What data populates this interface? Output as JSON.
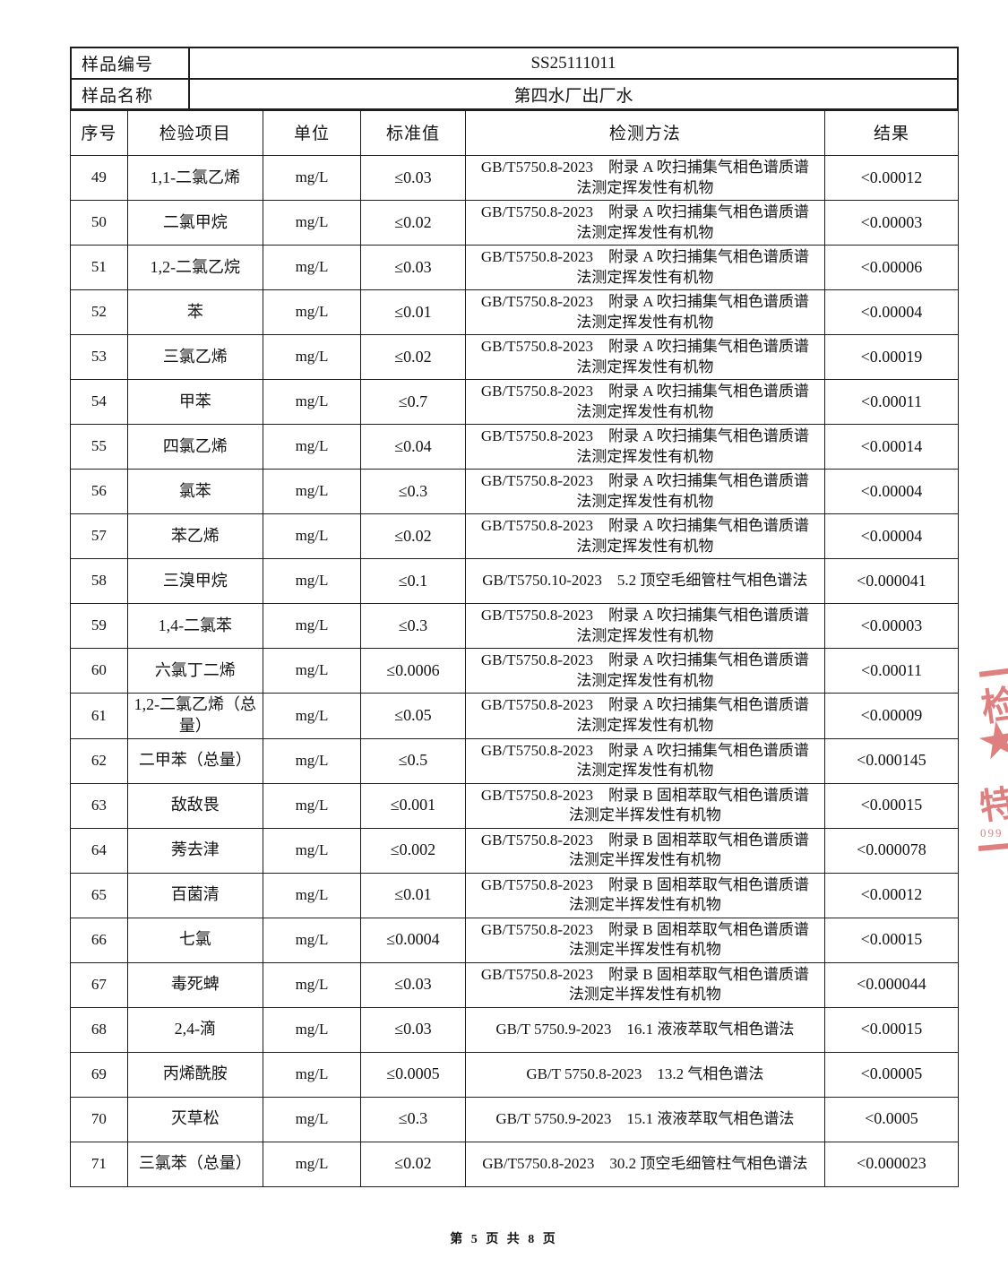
{
  "header": {
    "sample_id_label": "样品编号",
    "sample_id_value": "SS25111011",
    "sample_name_label": "样品名称",
    "sample_name_value": "第四水厂出厂水"
  },
  "table": {
    "columns": [
      "序号",
      "检验项目",
      "单位",
      "标准值",
      "检测方法",
      "结果"
    ],
    "rows": [
      {
        "no": "49",
        "item": "1,1-二氯乙烯",
        "unit": "mg/L",
        "standard": "≤0.03",
        "method": "GB/T5750.8-2023　附录 A 吹扫捕集气相色谱质谱法测定挥发性有机物",
        "result": "<0.00012"
      },
      {
        "no": "50",
        "item": "二氯甲烷",
        "unit": "mg/L",
        "standard": "≤0.02",
        "method": "GB/T5750.8-2023　附录 A 吹扫捕集气相色谱质谱法测定挥发性有机物",
        "result": "<0.00003"
      },
      {
        "no": "51",
        "item": "1,2-二氯乙烷",
        "unit": "mg/L",
        "standard": "≤0.03",
        "method": "GB/T5750.8-2023　附录 A 吹扫捕集气相色谱质谱法测定挥发性有机物",
        "result": "<0.00006"
      },
      {
        "no": "52",
        "item": "苯",
        "unit": "mg/L",
        "standard": "≤0.01",
        "method": "GB/T5750.8-2023　附录 A 吹扫捕集气相色谱质谱法测定挥发性有机物",
        "result": "<0.00004"
      },
      {
        "no": "53",
        "item": "三氯乙烯",
        "unit": "mg/L",
        "standard": "≤0.02",
        "method": "GB/T5750.8-2023　附录 A 吹扫捕集气相色谱质谱法测定挥发性有机物",
        "result": "<0.00019"
      },
      {
        "no": "54",
        "item": "甲苯",
        "unit": "mg/L",
        "standard": "≤0.7",
        "method": "GB/T5750.8-2023　附录 A 吹扫捕集气相色谱质谱法测定挥发性有机物",
        "result": "<0.00011"
      },
      {
        "no": "55",
        "item": "四氯乙烯",
        "unit": "mg/L",
        "standard": "≤0.04",
        "method": "GB/T5750.8-2023　附录 A 吹扫捕集气相色谱质谱法测定挥发性有机物",
        "result": "<0.00014"
      },
      {
        "no": "56",
        "item": "氯苯",
        "unit": "mg/L",
        "standard": "≤0.3",
        "method": "GB/T5750.8-2023　附录 A 吹扫捕集气相色谱质谱法测定挥发性有机物",
        "result": "<0.00004"
      },
      {
        "no": "57",
        "item": "苯乙烯",
        "unit": "mg/L",
        "standard": "≤0.02",
        "method": "GB/T5750.8-2023　附录 A 吹扫捕集气相色谱质谱法测定挥发性有机物",
        "result": "<0.00004"
      },
      {
        "no": "58",
        "item": "三溴甲烷",
        "unit": "mg/L",
        "standard": "≤0.1",
        "method": "GB/T5750.10-2023　5.2 顶空毛细管柱气相色谱法",
        "result": "<0.000041"
      },
      {
        "no": "59",
        "item": "1,4-二氯苯",
        "unit": "mg/L",
        "standard": "≤0.3",
        "method": "GB/T5750.8-2023　附录 A 吹扫捕集气相色谱质谱法测定挥发性有机物",
        "result": "<0.00003"
      },
      {
        "no": "60",
        "item": "六氯丁二烯",
        "unit": "mg/L",
        "standard": "≤0.0006",
        "method": "GB/T5750.8-2023　附录 A 吹扫捕集气相色谱质谱法测定挥发性有机物",
        "result": "<0.00011"
      },
      {
        "no": "61",
        "item": "1,2-二氯乙烯（总量）",
        "unit": "mg/L",
        "standard": "≤0.05",
        "method": "GB/T5750.8-2023　附录 A 吹扫捕集气相色谱质谱法测定挥发性有机物",
        "result": "<0.00009"
      },
      {
        "no": "62",
        "item": "二甲苯（总量）",
        "unit": "mg/L",
        "standard": "≤0.5",
        "method": "GB/T5750.8-2023　附录 A 吹扫捕集气相色谱质谱法测定挥发性有机物",
        "result": "<0.000145"
      },
      {
        "no": "63",
        "item": "敌敌畏",
        "unit": "mg/L",
        "standard": "≤0.001",
        "method": "GB/T5750.8-2023　附录 B 固相萃取气相色谱质谱法测定半挥发性有机物",
        "result": "<0.00015"
      },
      {
        "no": "64",
        "item": "莠去津",
        "unit": "mg/L",
        "standard": "≤0.002",
        "method": "GB/T5750.8-2023　附录 B 固相萃取气相色谱质谱法测定半挥发性有机物",
        "result": "<0.000078"
      },
      {
        "no": "65",
        "item": "百菌清",
        "unit": "mg/L",
        "standard": "≤0.01",
        "method": "GB/T5750.8-2023　附录 B 固相萃取气相色谱质谱法测定半挥发性有机物",
        "result": "<0.00012"
      },
      {
        "no": "66",
        "item": "七氯",
        "unit": "mg/L",
        "standard": "≤0.0004",
        "method": "GB/T5750.8-2023　附录 B 固相萃取气相色谱质谱法测定半挥发性有机物",
        "result": "<0.00015"
      },
      {
        "no": "67",
        "item": "毒死蜱",
        "unit": "mg/L",
        "standard": "≤0.03",
        "method": "GB/T5750.8-2023　附录 B 固相萃取气相色谱质谱法测定半挥发性有机物",
        "result": "<0.000044"
      },
      {
        "no": "68",
        "item": "2,4-滴",
        "unit": "mg/L",
        "standard": "≤0.03",
        "method": "GB/T 5750.9-2023　16.1 液液萃取气相色谱法",
        "result": "<0.00015"
      },
      {
        "no": "69",
        "item": "丙烯酰胺",
        "unit": "mg/L",
        "standard": "≤0.0005",
        "method": "GB/T 5750.8-2023　13.2 气相色谱法",
        "result": "<0.00005"
      },
      {
        "no": "70",
        "item": "灭草松",
        "unit": "mg/L",
        "standard": "≤0.3",
        "method": "GB/T 5750.9-2023　15.1 液液萃取气相色谱法",
        "result": "<0.0005"
      },
      {
        "no": "71",
        "item": "三氯苯（总量）",
        "unit": "mg/L",
        "standard": "≤0.02",
        "method": "GB/T5750.8-2023　30.2 顶空毛细管柱气相色谱法",
        "result": "<0.000023"
      }
    ]
  },
  "stamp": {
    "color": "#d96a6a",
    "char_top": "检",
    "star_icon": "★",
    "char_bottom": "特",
    "digits": "099"
  },
  "footer": {
    "page_text": "第 5 页 共 8 页"
  }
}
